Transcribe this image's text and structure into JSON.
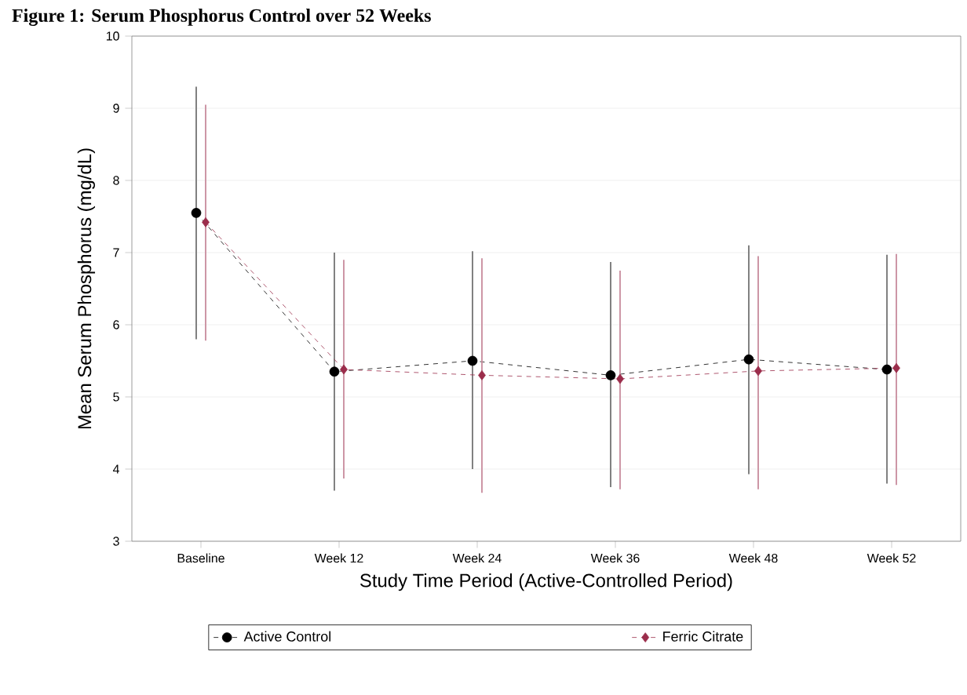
{
  "chart_data": {
    "type": "line",
    "title": "Figure 1: Serum Phosphorus Control over 52 Weeks",
    "xlabel": "Study Time Period (Active-Controlled Period)",
    "ylabel": "Mean Serum Phosphorus (mg/dL)",
    "categories": [
      "Baseline",
      "Week 12",
      "Week 24",
      "Week 36",
      "Week 48",
      "Week 52"
    ],
    "ylim": [
      3,
      10
    ],
    "yticks": [
      3,
      4,
      5,
      6,
      7,
      8,
      9,
      10
    ],
    "grid": "y",
    "legend": "bottom",
    "line_style": "dashed",
    "series": [
      {
        "name": "Active Control",
        "color": "#000000",
        "marker": "circle",
        "values": [
          7.55,
          5.35,
          5.5,
          5.3,
          5.52,
          5.38
        ],
        "errors": [
          [
            5.8,
            9.3
          ],
          [
            3.7,
            7.0
          ],
          [
            4.0,
            7.02
          ],
          [
            3.75,
            6.87
          ],
          [
            3.93,
            7.1
          ],
          [
            3.8,
            6.97
          ]
        ]
      },
      {
        "name": "Ferric Citrate",
        "color": "#9b2d4b",
        "marker": "diamond",
        "values": [
          7.42,
          5.38,
          5.3,
          5.25,
          5.36,
          5.4
        ],
        "errors": [
          [
            5.78,
            9.05
          ],
          [
            3.87,
            6.9
          ],
          [
            3.67,
            6.92
          ],
          [
            3.72,
            6.75
          ],
          [
            3.72,
            6.95
          ],
          [
            3.78,
            6.98
          ]
        ]
      }
    ]
  }
}
